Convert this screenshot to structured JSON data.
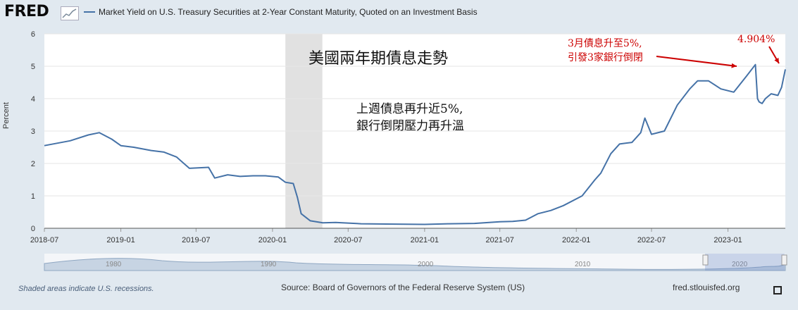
{
  "header": {
    "logo": "FRED",
    "logo_icon": "chart-line-icon",
    "series_title": "Market Yield on U.S. Treasury Securities at 2-Year Constant Maturity, Quoted on an Investment Basis"
  },
  "chart_data": {
    "type": "line",
    "ylabel": "Percent",
    "ylim": [
      0,
      6
    ],
    "y_ticks": [
      "0",
      "1",
      "2",
      "3",
      "4",
      "5",
      "6"
    ],
    "x_ticks": [
      "2018-07",
      "2019-01",
      "2019-07",
      "2020-01",
      "2020-07",
      "2021-01",
      "2021-07",
      "2022-01",
      "2022-07",
      "2023-01"
    ],
    "xlim": [
      "2018-07-01",
      "2023-05-19"
    ],
    "recession": {
      "start": "2020-02-01",
      "end": "2020-04-30"
    },
    "grid": true,
    "line_color": "#4572a7",
    "series": [
      {
        "x": [
          "2018-07-01",
          "2018-09-01",
          "2018-10-15",
          "2018-11-10",
          "2018-12-10",
          "2019-01-01",
          "2019-02-01",
          "2019-03-15",
          "2019-04-15",
          "2019-05-15",
          "2019-06-15",
          "2019-07-31",
          "2019-08-15",
          "2019-09-15",
          "2019-10-15",
          "2019-11-15",
          "2019-12-15",
          "2020-01-15",
          "2020-02-01",
          "2020-02-20",
          "2020-03-01",
          "2020-03-10",
          "2020-03-20",
          "2020-04-01",
          "2020-05-01",
          "2020-06-01",
          "2020-08-01",
          "2020-10-01",
          "2021-01-01",
          "2021-03-01",
          "2021-05-01",
          "2021-07-01",
          "2021-08-01",
          "2021-09-01",
          "2021-10-01",
          "2021-11-01",
          "2021-12-01",
          "2022-01-15",
          "2022-02-15",
          "2022-03-01",
          "2022-03-25",
          "2022-04-15",
          "2022-05-15",
          "2022-06-05",
          "2022-06-15",
          "2022-07-01",
          "2022-08-01",
          "2022-09-01",
          "2022-10-01",
          "2022-10-20",
          "2022-11-15",
          "2022-12-15",
          "2023-01-15",
          "2023-02-15",
          "2023-03-08",
          "2023-03-13",
          "2023-03-17",
          "2023-03-24",
          "2023-04-01",
          "2023-04-15",
          "2023-05-01",
          "2023-05-10",
          "2023-05-19"
        ],
        "y": [
          2.55,
          2.7,
          2.88,
          2.95,
          2.75,
          2.55,
          2.5,
          2.4,
          2.35,
          2.2,
          1.85,
          1.88,
          1.55,
          1.65,
          1.6,
          1.62,
          1.62,
          1.58,
          1.42,
          1.38,
          0.95,
          0.45,
          0.35,
          0.23,
          0.17,
          0.18,
          0.14,
          0.13,
          0.12,
          0.14,
          0.15,
          0.2,
          0.21,
          0.25,
          0.45,
          0.55,
          0.7,
          1.0,
          1.5,
          1.7,
          2.3,
          2.6,
          2.65,
          2.95,
          3.4,
          2.9,
          3.0,
          3.8,
          4.3,
          4.55,
          4.55,
          4.3,
          4.2,
          4.7,
          5.05,
          4.0,
          3.9,
          3.85,
          4.0,
          4.15,
          4.1,
          4.35,
          4.904
        ]
      }
    ],
    "navigator_ticks": [
      "1980",
      "1990",
      "2000",
      "2010",
      "2020"
    ]
  },
  "annotations": {
    "main_title": "美國兩年期債息走勢",
    "middle_line1": "上週債息再升近5%,",
    "middle_line2": "銀行倒閉壓力再升溫",
    "red_line1": "3月債息升至5%,",
    "red_line2": "引發3家銀行倒閉",
    "red_value": "4.904%",
    "red_color": "#cc0000"
  },
  "footer": {
    "recession_note": "Shaded areas indicate U.S. recessions.",
    "source": "Source: Board of Governors of the Federal Reserve System (US)",
    "site": "fred.stlouisfed.org",
    "fullscreen_icon": "fullscreen-icon"
  }
}
